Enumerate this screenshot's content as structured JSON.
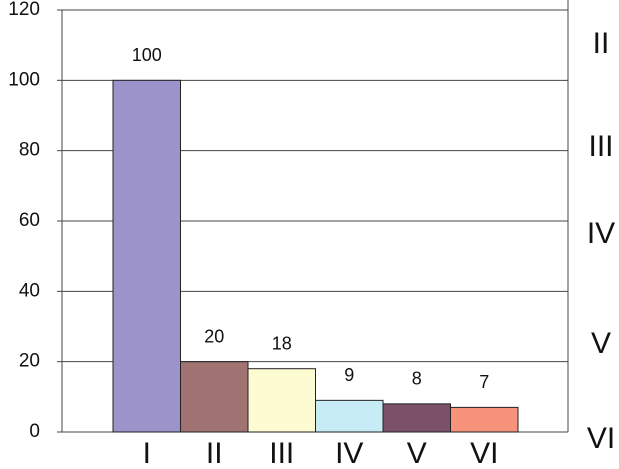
{
  "chart_data": {
    "type": "bar",
    "categories": [
      "I",
      "II",
      "III",
      "IV",
      "V",
      "VI"
    ],
    "values": [
      100,
      20,
      18,
      9,
      8,
      7
    ],
    "colors": [
      "#9b93c9",
      "#a07272",
      "#fdfbd2",
      "#c8ecf6",
      "#7b5068",
      "#f7937a"
    ],
    "ylim": [
      0,
      120
    ],
    "yticks": [
      0,
      20,
      40,
      60,
      80,
      100,
      120
    ],
    "grid": true,
    "right_labels": [
      "II",
      "III",
      "IV",
      "V",
      "VI"
    ]
  }
}
